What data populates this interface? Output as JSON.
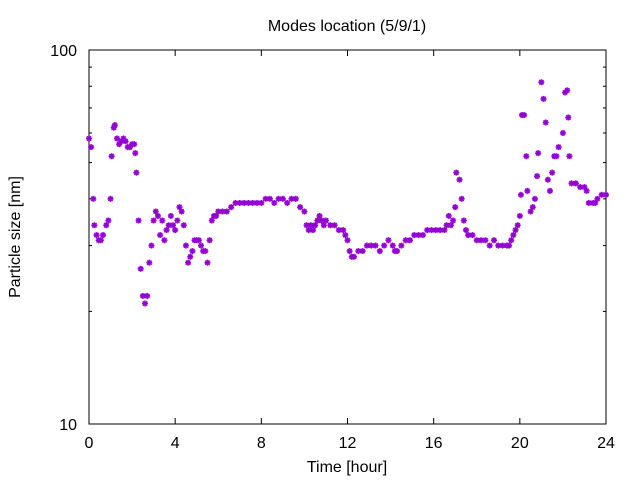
{
  "chart_data": {
    "type": "scatter",
    "title": "Modes location (5/9/1)",
    "xlabel": "Time [hour]",
    "ylabel": "Particle size [nm]",
    "xlim": [
      0,
      24
    ],
    "ylim": [
      10,
      100
    ],
    "yscale": "log",
    "grid": false,
    "x_ticks": [
      0,
      4,
      8,
      12,
      16,
      20,
      24
    ],
    "x_tick_labels": [
      "0",
      "4",
      "8",
      "12",
      "16",
      "20",
      "24"
    ],
    "y_ticks": [
      10,
      100
    ],
    "y_tick_labels": [
      "10",
      "100"
    ],
    "marker": "asterisk",
    "series": [
      {
        "color": "#9400d3",
        "points": [
          [
            0.0,
            58
          ],
          [
            0.1,
            55
          ],
          [
            0.2,
            40
          ],
          [
            0.25,
            34
          ],
          [
            0.35,
            32
          ],
          [
            0.45,
            31
          ],
          [
            0.55,
            31
          ],
          [
            0.65,
            32
          ],
          [
            0.8,
            34
          ],
          [
            0.9,
            35
          ],
          [
            1.0,
            40
          ],
          [
            1.05,
            52
          ],
          [
            1.15,
            62
          ],
          [
            1.2,
            63
          ],
          [
            1.3,
            58
          ],
          [
            1.4,
            56
          ],
          [
            1.5,
            57
          ],
          [
            1.6,
            58
          ],
          [
            1.7,
            57
          ],
          [
            1.8,
            55
          ],
          [
            1.9,
            55
          ],
          [
            2.0,
            56
          ],
          [
            2.1,
            56
          ],
          [
            2.15,
            53
          ],
          [
            2.2,
            47
          ],
          [
            2.3,
            35
          ],
          [
            2.4,
            26
          ],
          [
            2.5,
            22
          ],
          [
            2.6,
            21
          ],
          [
            2.7,
            22
          ],
          [
            2.8,
            27
          ],
          [
            2.9,
            30
          ],
          [
            3.0,
            35
          ],
          [
            3.1,
            37
          ],
          [
            3.2,
            36
          ],
          [
            3.3,
            32
          ],
          [
            3.4,
            35
          ],
          [
            3.5,
            31
          ],
          [
            3.6,
            33
          ],
          [
            3.7,
            34
          ],
          [
            3.8,
            36
          ],
          [
            3.9,
            34
          ],
          [
            4.0,
            33
          ],
          [
            4.1,
            35
          ],
          [
            4.2,
            38
          ],
          [
            4.3,
            37
          ],
          [
            4.4,
            34
          ],
          [
            4.5,
            30
          ],
          [
            4.6,
            27
          ],
          [
            4.7,
            28
          ],
          [
            4.8,
            29
          ],
          [
            4.9,
            31
          ],
          [
            5.0,
            31
          ],
          [
            5.1,
            31
          ],
          [
            5.2,
            30
          ],
          [
            5.3,
            29
          ],
          [
            5.4,
            29
          ],
          [
            5.5,
            27
          ],
          [
            5.6,
            31
          ],
          [
            5.7,
            35
          ],
          [
            5.8,
            36
          ],
          [
            5.9,
            36
          ],
          [
            6.0,
            37
          ],
          [
            6.2,
            37
          ],
          [
            6.4,
            37
          ],
          [
            6.6,
            38
          ],
          [
            6.8,
            39
          ],
          [
            7.0,
            39
          ],
          [
            7.2,
            39
          ],
          [
            7.4,
            39
          ],
          [
            7.6,
            39
          ],
          [
            7.8,
            39
          ],
          [
            8.0,
            39
          ],
          [
            8.2,
            40
          ],
          [
            8.4,
            40
          ],
          [
            8.6,
            39
          ],
          [
            8.8,
            40
          ],
          [
            9.0,
            40
          ],
          [
            9.2,
            39
          ],
          [
            9.4,
            40
          ],
          [
            9.6,
            40
          ],
          [
            9.8,
            38
          ],
          [
            10.0,
            37
          ],
          [
            10.1,
            34
          ],
          [
            10.2,
            33
          ],
          [
            10.3,
            34
          ],
          [
            10.4,
            33
          ],
          [
            10.5,
            34
          ],
          [
            10.6,
            35
          ],
          [
            10.7,
            36
          ],
          [
            10.8,
            35
          ],
          [
            10.9,
            34
          ],
          [
            11.0,
            35
          ],
          [
            11.2,
            34
          ],
          [
            11.4,
            34
          ],
          [
            11.6,
            33
          ],
          [
            11.8,
            33
          ],
          [
            11.9,
            32
          ],
          [
            12.0,
            31
          ],
          [
            12.1,
            29
          ],
          [
            12.2,
            28
          ],
          [
            12.3,
            28
          ],
          [
            12.5,
            29
          ],
          [
            12.7,
            29
          ],
          [
            12.9,
            30
          ],
          [
            13.1,
            30
          ],
          [
            13.3,
            30
          ],
          [
            13.5,
            29
          ],
          [
            13.7,
            30
          ],
          [
            13.9,
            31
          ],
          [
            14.1,
            30
          ],
          [
            14.2,
            29
          ],
          [
            14.3,
            29
          ],
          [
            14.5,
            30
          ],
          [
            14.7,
            31
          ],
          [
            14.9,
            31
          ],
          [
            15.1,
            32
          ],
          [
            15.3,
            32
          ],
          [
            15.5,
            32
          ],
          [
            15.7,
            33
          ],
          [
            15.9,
            33
          ],
          [
            16.1,
            33
          ],
          [
            16.3,
            33
          ],
          [
            16.5,
            33
          ],
          [
            16.6,
            34
          ],
          [
            16.7,
            36
          ],
          [
            16.8,
            34
          ],
          [
            16.9,
            35
          ],
          [
            17.0,
            38
          ],
          [
            17.05,
            47
          ],
          [
            17.2,
            45
          ],
          [
            17.3,
            40
          ],
          [
            17.4,
            35
          ],
          [
            17.5,
            33
          ],
          [
            17.6,
            32
          ],
          [
            17.8,
            32
          ],
          [
            18.0,
            31
          ],
          [
            18.2,
            31
          ],
          [
            18.4,
            31
          ],
          [
            18.6,
            30
          ],
          [
            18.8,
            31
          ],
          [
            19.0,
            30
          ],
          [
            19.2,
            30
          ],
          [
            19.4,
            30
          ],
          [
            19.5,
            30
          ],
          [
            19.6,
            31
          ],
          [
            19.7,
            32
          ],
          [
            19.8,
            33
          ],
          [
            19.9,
            34
          ],
          [
            20.0,
            36
          ],
          [
            20.05,
            41
          ],
          [
            20.1,
            67
          ],
          [
            20.2,
            67
          ],
          [
            20.3,
            52
          ],
          [
            20.35,
            42
          ],
          [
            20.5,
            37
          ],
          [
            20.6,
            38
          ],
          [
            20.7,
            40
          ],
          [
            20.8,
            46
          ],
          [
            20.85,
            53
          ],
          [
            21.0,
            82
          ],
          [
            21.1,
            74
          ],
          [
            21.2,
            64
          ],
          [
            21.3,
            45
          ],
          [
            21.4,
            42
          ],
          [
            21.5,
            47
          ],
          [
            21.6,
            52
          ],
          [
            21.7,
            52
          ],
          [
            21.8,
            55
          ],
          [
            22.0,
            60
          ],
          [
            22.1,
            77
          ],
          [
            22.2,
            78
          ],
          [
            22.25,
            66
          ],
          [
            22.3,
            52
          ],
          [
            22.4,
            44
          ],
          [
            22.6,
            44
          ],
          [
            22.8,
            43
          ],
          [
            23.0,
            43
          ],
          [
            23.1,
            42
          ],
          [
            23.2,
            39
          ],
          [
            23.4,
            39
          ],
          [
            23.5,
            39
          ],
          [
            23.6,
            40
          ],
          [
            23.8,
            41
          ],
          [
            24.0,
            41
          ]
        ]
      }
    ]
  }
}
